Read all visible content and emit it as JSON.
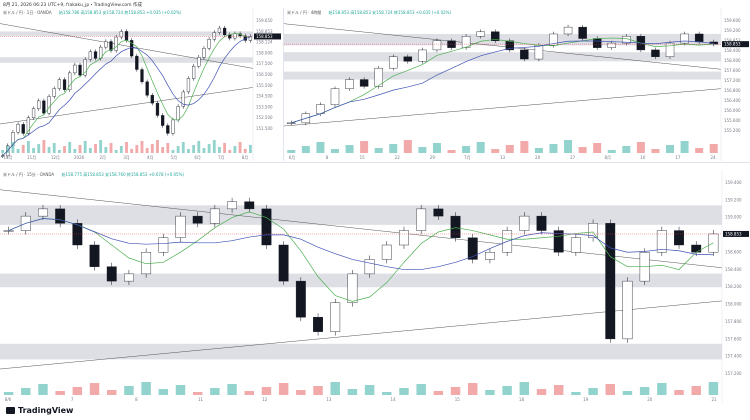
{
  "header_text": "8月 21, 2026 06:23 UTC+9, frakaku_jp・TradingView.com 作成",
  "branding": "TradingView",
  "panes": [
    {
      "id": "top-left",
      "symbol": "米ドル / 円 · 1日 · OANDA",
      "ohlc": "始158.786 高158.853 安158.724 終158.853 +0.035 (+0.02%)",
      "price_labels": [
        "159.650",
        "158.853",
        "158.124",
        "158.000",
        "157.500",
        "156.500",
        "155.500",
        "154.500",
        "153.500",
        "152.500",
        "151.500"
      ],
      "x_labels": [
        "10月",
        "11月",
        "12月",
        "2026",
        "2月",
        "3月",
        "4月",
        "5月",
        "6月",
        "7月",
        "8月"
      ],
      "chart_data": {
        "type": "candlestick",
        "title": "米ドル / 円 · 1日",
        "close": [
          148.2,
          149.1,
          150.3,
          151.0,
          150.2,
          151.6,
          152.4,
          153.1,
          152.0,
          153.5,
          154.2,
          155.0,
          154.1,
          155.6,
          156.3,
          155.4,
          156.8,
          157.5,
          156.9,
          157.9,
          158.4,
          157.6,
          158.8,
          159.3,
          158.5,
          157.1,
          155.9,
          154.8,
          153.6,
          152.9,
          151.8,
          150.9,
          150.2,
          151.4,
          152.6,
          153.9,
          155.1,
          156.2,
          157.0,
          157.8,
          158.6,
          159.2,
          159.6,
          159.0,
          158.7,
          159.1,
          158.9,
          158.5,
          158.853
        ],
        "ylim": [
          150.5,
          160.5
        ]
      }
    },
    {
      "id": "top-right",
      "symbol": "米ドル / 円 · 4時間",
      "ohlc": "始158.853 高158.853 安158.724 終158.853 +0.035 (+0.02%)",
      "price_labels": [
        "159.600",
        "159.200",
        "158.853",
        "158.400",
        "158.000",
        "157.600",
        "157.200",
        "156.800",
        "156.400",
        "156.000",
        "155.600",
        "155.200"
      ],
      "x_labels": [
        "6月",
        "8",
        "15",
        "22",
        "29",
        "7月",
        "13",
        "20",
        "27",
        "8月",
        "10",
        "17",
        "24"
      ],
      "chart_data": {
        "type": "candlestick",
        "title": "米ドル / 円 · 4時間",
        "close": [
          155.4,
          155.8,
          156.2,
          156.9,
          157.3,
          157.0,
          157.8,
          158.3,
          158.1,
          158.6,
          159.0,
          158.7,
          159.2,
          159.4,
          159.0,
          158.6,
          158.2,
          158.8,
          159.3,
          159.6,
          159.1,
          158.7,
          158.9,
          159.2,
          158.6,
          158.3,
          158.9,
          159.3,
          158.95,
          158.853
        ],
        "ylim": [
          155.0,
          160.0
        ]
      }
    },
    {
      "id": "bottom",
      "symbol": "米ドル / 円 · 15分 · OANDA",
      "ohlc": "始158.775 高158.853 安158.760 終158.853 +0.078 (+0.05%)",
      "price_labels": [
        "159.400",
        "159.200",
        "159.000",
        "158.853",
        "158.600",
        "158.400",
        "158.200",
        "158.000",
        "157.800",
        "157.600",
        "157.400",
        "157.200"
      ],
      "x_labels": [
        "8/6",
        "7",
        "8",
        "11",
        "12",
        "13",
        "14",
        "15",
        "18",
        "19",
        "20",
        "21"
      ],
      "chart_data": {
        "type": "candlestick",
        "title": "米ドル / 円 · 15分",
        "close": [
          158.9,
          159.1,
          159.2,
          159.0,
          158.7,
          158.4,
          158.2,
          158.3,
          158.6,
          158.8,
          159.1,
          159.0,
          159.2,
          159.3,
          159.2,
          158.7,
          158.2,
          157.7,
          157.5,
          157.9,
          158.3,
          158.5,
          158.7,
          158.9,
          159.2,
          159.1,
          158.8,
          158.5,
          158.6,
          158.9,
          159.1,
          158.9,
          158.6,
          158.8,
          159.0,
          157.4,
          158.2,
          158.6,
          158.9,
          158.7,
          158.6,
          158.853
        ],
        "ylim": [
          156.9,
          159.6
        ]
      }
    }
  ]
}
